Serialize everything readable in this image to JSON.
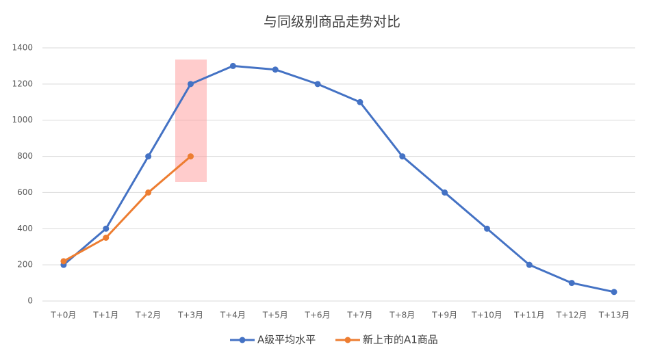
{
  "chart_data": {
    "type": "line",
    "title": "与同级别商品走势对比",
    "categories": [
      "T+0月",
      "T+1月",
      "T+2月",
      "T+3月",
      "T+4月",
      "T+5月",
      "T+6月",
      "T+7月",
      "T+8月",
      "T+9月",
      "T+10月",
      "T+11月",
      "T+12月",
      "T+13月"
    ],
    "series": [
      {
        "name": "A级平均水平",
        "color": "#4472c4",
        "values": [
          200,
          400,
          800,
          1200,
          1300,
          1280,
          1200,
          1100,
          800,
          600,
          400,
          200,
          100,
          50
        ]
      },
      {
        "name": "新上市的A1商品",
        "color": "#ed7d31",
        "values": [
          220,
          350,
          600,
          800,
          null,
          null,
          null,
          null,
          null,
          null,
          null,
          null,
          null,
          null
        ]
      }
    ],
    "ylim": [
      0,
      1400
    ],
    "yticks": [
      0,
      200,
      400,
      600,
      800,
      1000,
      1200,
      1400
    ],
    "grid": true,
    "legend": "bottom"
  }
}
